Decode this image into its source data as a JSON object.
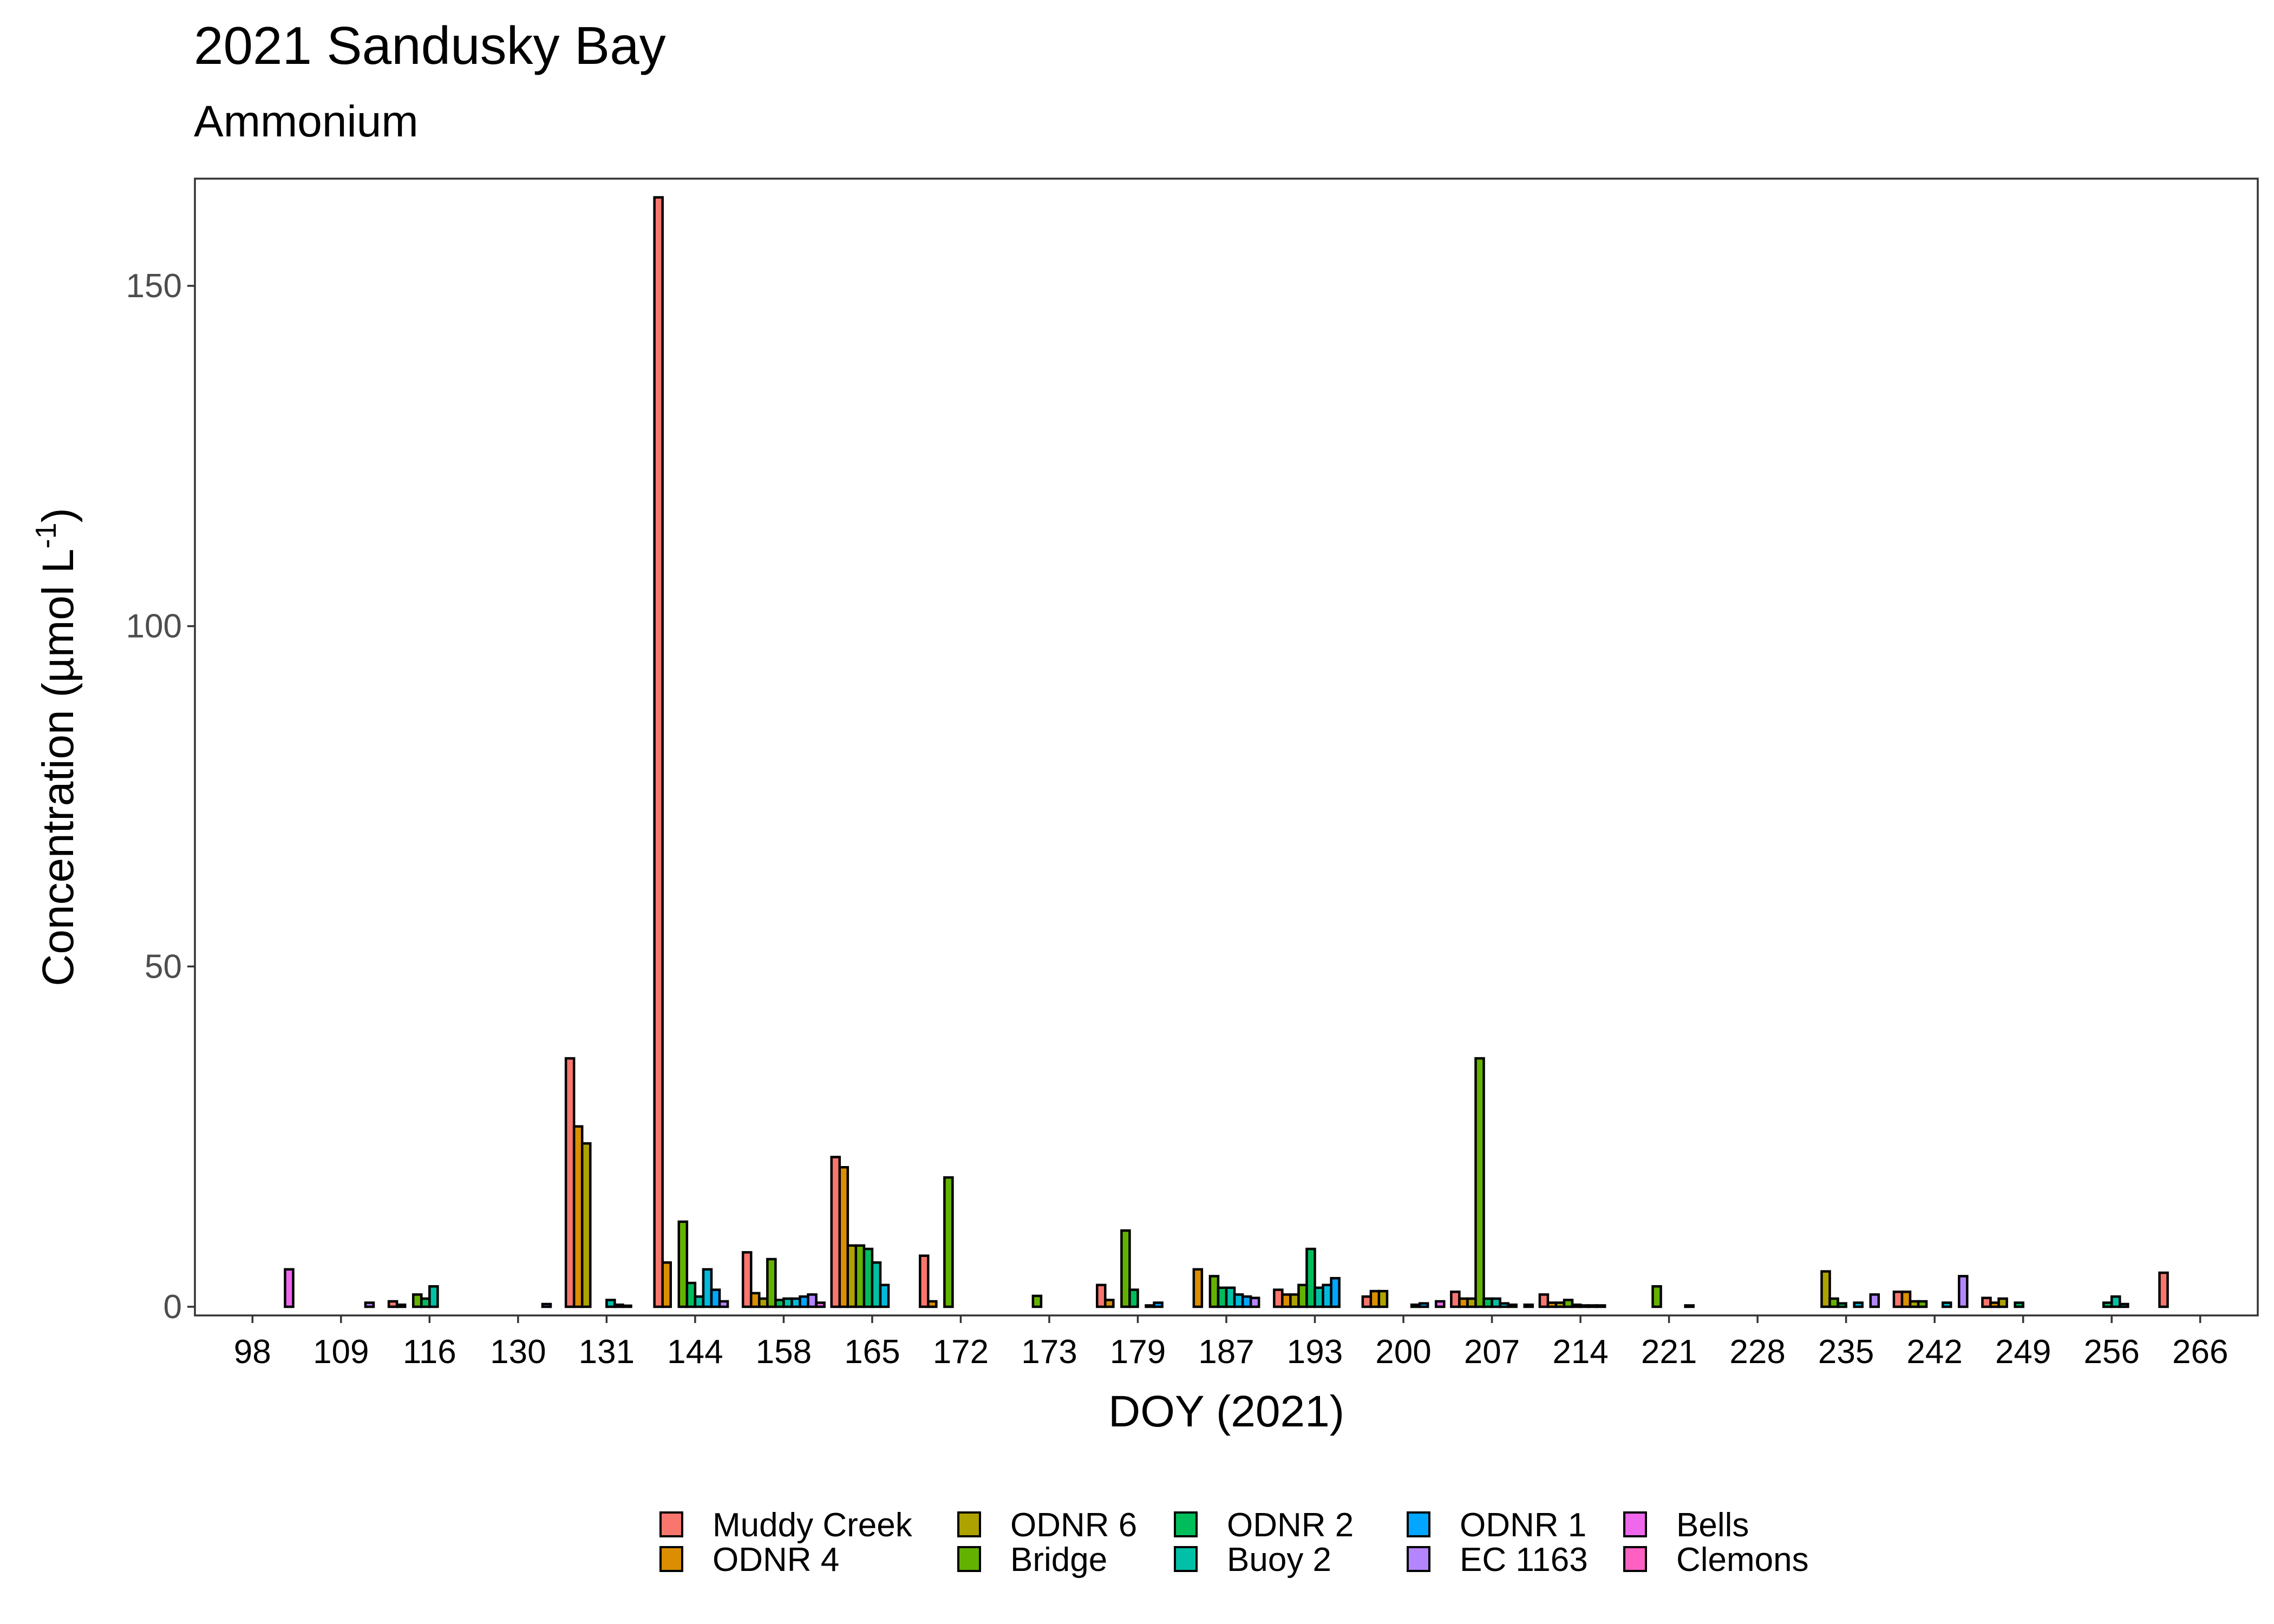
{
  "chart_data": {
    "type": "bar",
    "title": "2021 Sandusky Bay",
    "subtitle": "Ammonium",
    "xlabel": "DOY (2021)",
    "ylabel_prefix": "Concentration (µmol L",
    "ylabel_sup": "-1",
    "ylabel_suffix": ")",
    "ylim": [
      0,
      164
    ],
    "yticks": [
      0,
      50,
      100,
      150
    ],
    "categories": [
      "98",
      "109",
      "116",
      "130",
      "131",
      "144",
      "158",
      "165",
      "172",
      "173",
      "179",
      "187",
      "193",
      "200",
      "207",
      "214",
      "221",
      "228",
      "235",
      "242",
      "249",
      "256",
      "266"
    ],
    "grid": false,
    "legend_position": "bottom",
    "series": [
      {
        "name": "Muddy Creek",
        "color": "#F8766D",
        "values": [
          null,
          null,
          0.8,
          null,
          36.5,
          163,
          8,
          22,
          7.5,
          null,
          3.2,
          null,
          2.5,
          1.5,
          2.2,
          1.8,
          null,
          null,
          null,
          2.2,
          1.3,
          null,
          5
        ]
      },
      {
        "name": "ODNR 4",
        "color": "#DB8E00",
        "values": [
          null,
          null,
          0.3,
          null,
          26.5,
          6.5,
          2,
          20.5,
          0.8,
          null,
          1,
          5.5,
          1.8,
          2.3,
          1.2,
          0.6,
          null,
          null,
          null,
          2.2,
          0.6,
          null,
          null
        ]
      },
      {
        "name": "ODNR 6",
        "color": "#AEA200",
        "values": [
          null,
          null,
          null,
          null,
          24,
          null,
          1.2,
          9,
          null,
          null,
          null,
          null,
          1.8,
          2.3,
          1.2,
          0.6,
          null,
          null,
          5.2,
          0.8,
          1.2,
          null,
          null
        ]
      },
      {
        "name": "Bridge",
        "color": "#64B200",
        "values": [
          null,
          null,
          1.8,
          null,
          null,
          12.5,
          7,
          9,
          19,
          1.6,
          11.2,
          4.5,
          3.2,
          null,
          36.5,
          1,
          3,
          null,
          1.2,
          0.8,
          null,
          null,
          null
        ]
      },
      {
        "name": "ODNR 2",
        "color": "#00BD5C",
        "values": [
          null,
          null,
          1.2,
          null,
          null,
          3.5,
          1,
          8.5,
          null,
          null,
          2.5,
          2.8,
          8.5,
          null,
          1.2,
          0.3,
          null,
          null,
          0.5,
          null,
          0.6,
          0.6,
          null
        ]
      },
      {
        "name": "Buoy 2",
        "color": "#00C1A7",
        "values": [
          null,
          null,
          3,
          null,
          1,
          1.5,
          1.2,
          6.5,
          null,
          null,
          null,
          2.8,
          2.8,
          null,
          1.2,
          0.2,
          null,
          null,
          null,
          null,
          null,
          1.5,
          null
        ]
      },
      {
        "name": "ODNR 1",
        "color": "#00BADE",
        "values": [
          null,
          null,
          null,
          null,
          0.3,
          5.5,
          1.2,
          3.2,
          null,
          null,
          0.2,
          1.8,
          3.2,
          0.3,
          0.5,
          0.2,
          null,
          null,
          0.6,
          0.6,
          null,
          0.4,
          null
        ]
      },
      {
        "name": "EC 1163",
        "color": "#00A6FF",
        "values": [
          null,
          null,
          null,
          null,
          0.1,
          2.5,
          1.5,
          null,
          null,
          null,
          0.6,
          1.5,
          4.2,
          0.5,
          0.3,
          0.2,
          0.2,
          null,
          null,
          null,
          null,
          null,
          null
        ]
      },
      {
        "name": "Bells",
        "color": "#B385FF",
        "values": [
          null,
          0.6,
          null,
          0.4,
          null,
          0.8,
          1.8,
          null,
          null,
          null,
          null,
          1.3,
          null,
          null,
          null,
          null,
          null,
          null,
          1.8,
          4.5,
          null,
          null,
          null
        ]
      },
      {
        "name": "Clemons",
        "color": "#EF67EB",
        "values": [
          5.5,
          null,
          null,
          null,
          null,
          null,
          0.6,
          null,
          null,
          null,
          null,
          null,
          null,
          0.8,
          0.3,
          null,
          null,
          null,
          null,
          null,
          null,
          null,
          null
        ]
      }
    ],
    "legend_order": [
      "Muddy Creek",
      "ODNR 4",
      "ODNR 6",
      "Bridge",
      "ODNR 2",
      "Buoy 2",
      "ODNR 1",
      "EC 1163",
      "Bells",
      "Clemons"
    ]
  },
  "legend_colors": [
    "#F8766D",
    "#DB8E00",
    "#AEA200",
    "#64B200",
    "#00BD5C",
    "#00C1A7",
    "#00A6FF",
    "#B385FF",
    "#EF67EB",
    "#FF61C3"
  ]
}
